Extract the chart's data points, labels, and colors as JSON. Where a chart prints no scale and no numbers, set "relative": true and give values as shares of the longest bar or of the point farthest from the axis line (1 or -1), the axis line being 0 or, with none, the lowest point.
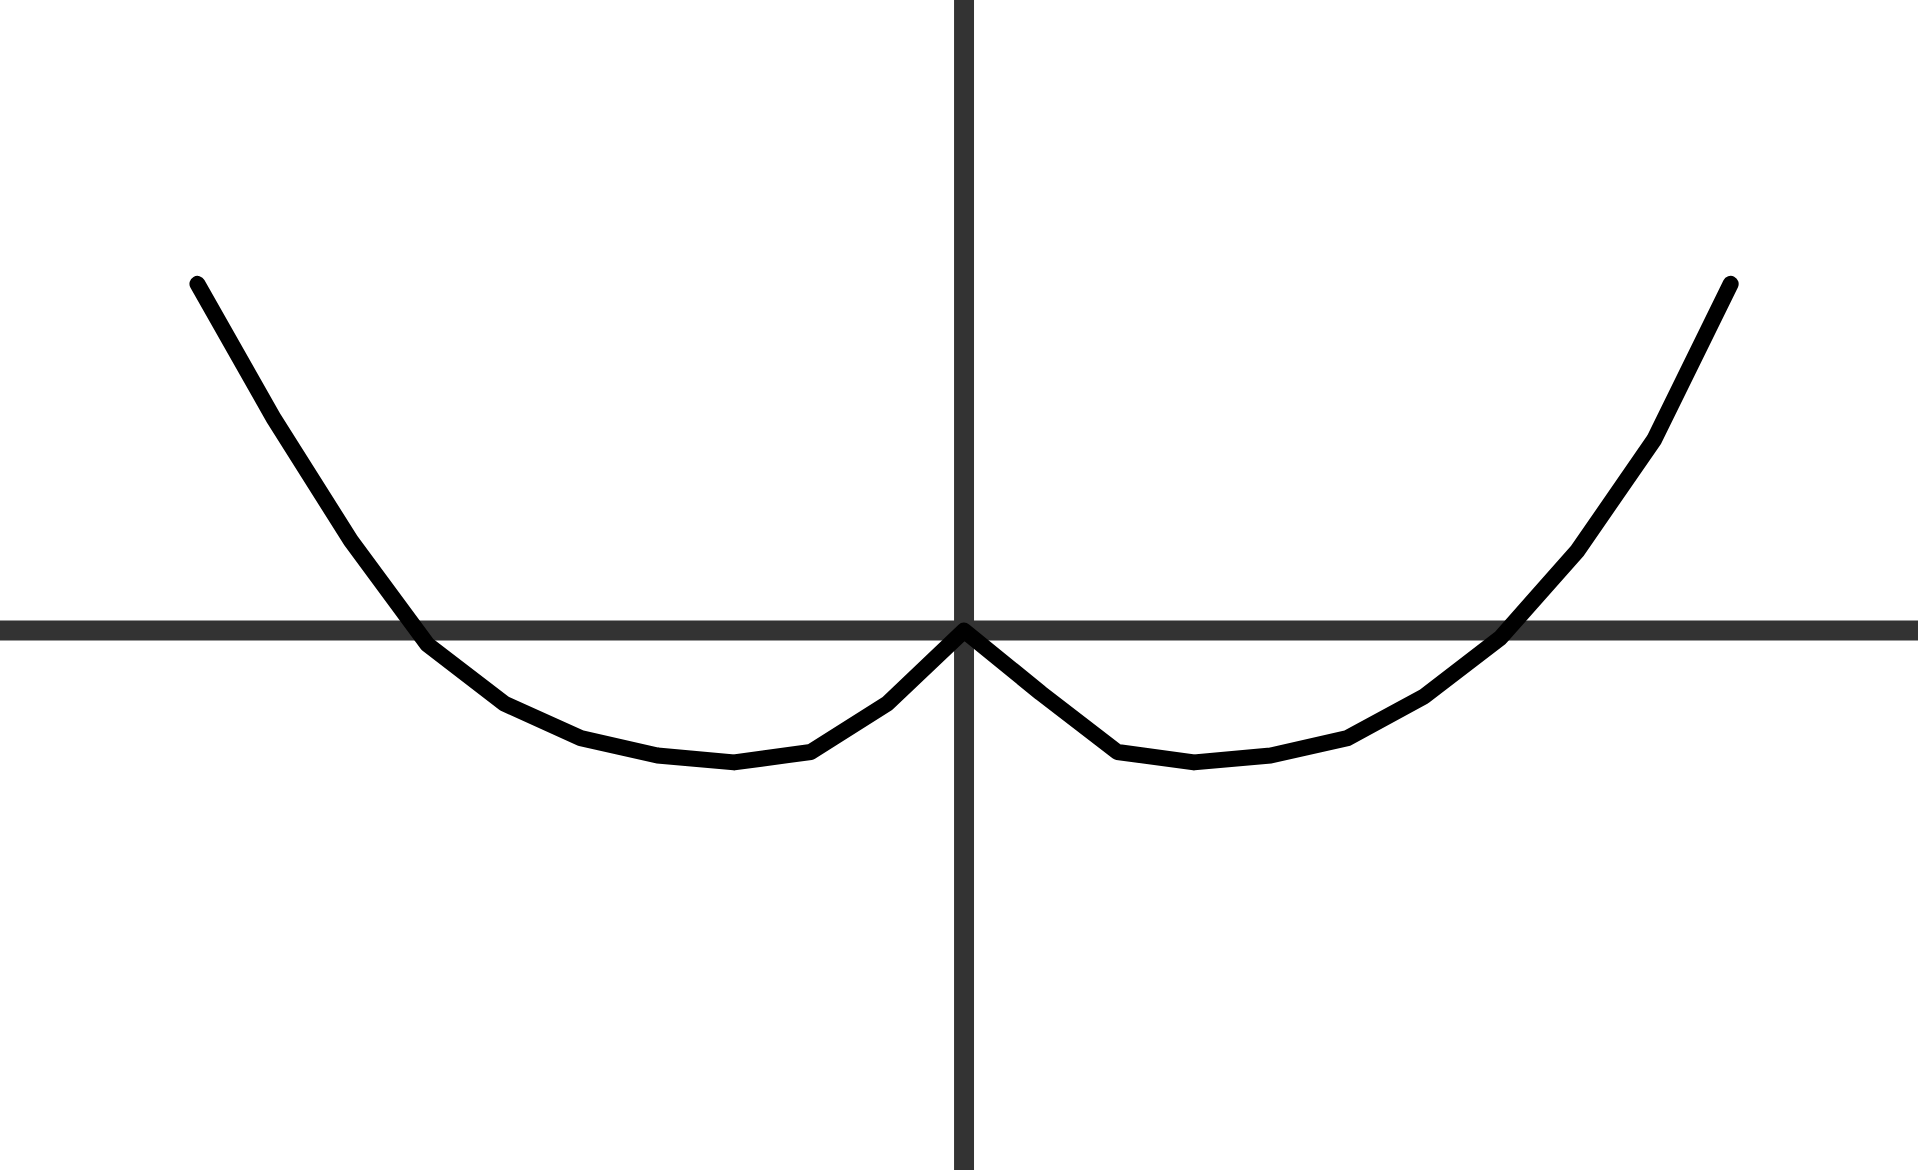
{
  "chart_data": {
    "type": "line",
    "relative": true,
    "categories": [
      null,
      null,
      null,
      null,
      null,
      null,
      null,
      null,
      null,
      null,
      null,
      null,
      null,
      null,
      null,
      null,
      null,
      null,
      null,
      null,
      null
    ],
    "values": [
      1.0,
      0.61,
      0.26,
      -0.04,
      -0.21,
      -0.31,
      -0.36,
      -0.38,
      -0.35,
      -0.21,
      0,
      -0.18,
      -0.35,
      -0.38,
      -0.36,
      -0.31,
      -0.19,
      -0.02,
      0.23,
      0.55,
      1.0
    ],
    "color": "#000000",
    "marker": "none"
  }
}
